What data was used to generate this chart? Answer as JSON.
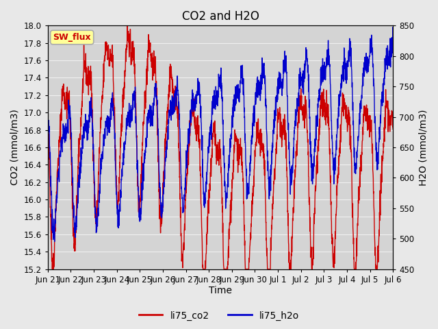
{
  "title": "CO2 and H2O",
  "xlabel": "Time",
  "ylabel_left": "CO2 (mmol/m3)",
  "ylabel_right": "H2O (mmol/m3)",
  "ylim_left": [
    15.2,
    18.0
  ],
  "ylim_right": [
    450,
    850
  ],
  "yticks_left": [
    15.2,
    15.4,
    15.6,
    15.8,
    16.0,
    16.2,
    16.4,
    16.6,
    16.8,
    17.0,
    17.2,
    17.4,
    17.6,
    17.8,
    18.0
  ],
  "yticks_right": [
    450,
    500,
    550,
    600,
    650,
    700,
    750,
    800,
    850
  ],
  "xtick_labels": [
    "Jun 21",
    "Jun 22",
    "Jun 23",
    "Jun 24",
    "Jun 25",
    "Jun 26",
    "Jun 27",
    "Jun 28",
    "Jun 29",
    "Jun 30",
    "Jul 1",
    "Jul 2",
    "Jul 3",
    "Jul 4",
    "Jul 5",
    "Jul 6"
  ],
  "color_co2": "#cc0000",
  "color_h2o": "#0000cc",
  "legend_label_co2": "li75_co2",
  "legend_label_h2o": "li75_h2o",
  "sw_flux_label": "SW_flux",
  "sw_flux_bg": "#ffff99",
  "sw_flux_border": "#aaaaaa",
  "sw_flux_text_color": "#cc0000",
  "fig_bg_color": "#e8e8e8",
  "plot_bg_color": "#d4d4d4",
  "grid_color": "#f0f0f0",
  "title_fontsize": 12,
  "axis_label_fontsize": 10,
  "tick_fontsize": 8.5,
  "legend_fontsize": 10,
  "line_width": 1.0,
  "seed": 42,
  "n_points": 2000
}
